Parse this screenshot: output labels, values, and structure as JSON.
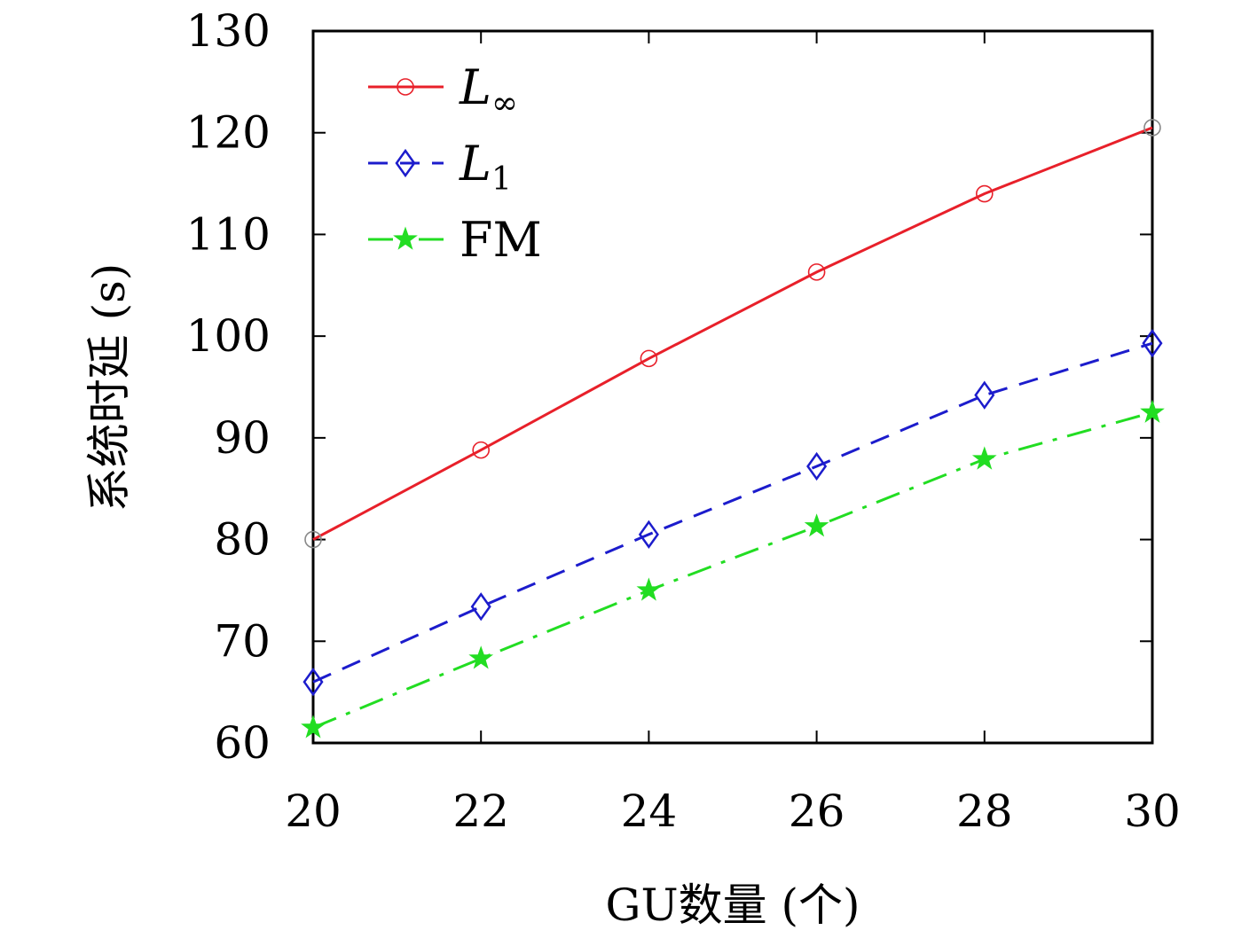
{
  "chart_data": {
    "type": "line",
    "x": [
      20,
      22,
      24,
      26,
      28,
      30
    ],
    "xlabel": "GU数量 (个)",
    "ylabel": "系统时延 (s)",
    "xlim": [
      20,
      30
    ],
    "ylim": [
      60,
      130
    ],
    "xticks": [
      "20",
      "22",
      "24",
      "26",
      "28",
      "30"
    ],
    "yticks": [
      "60",
      "70",
      "80",
      "90",
      "100",
      "110",
      "120",
      "130"
    ],
    "grid": false,
    "legend_position": "top-left",
    "series": [
      {
        "name": "L∞",
        "name_main": "L",
        "name_sub": "∞",
        "values": [
          80.0,
          88.8,
          97.8,
          106.3,
          114.0,
          120.5
        ],
        "color": "#e8202a",
        "marker": "circle",
        "line_style": "solid"
      },
      {
        "name": "L1",
        "name_main": "L",
        "name_sub": "1",
        "values": [
          66.0,
          73.4,
          80.5,
          87.2,
          94.2,
          99.3
        ],
        "color": "#1c1ccc",
        "marker": "diamond",
        "line_style": "dashed"
      },
      {
        "name": "FM",
        "name_main": "FM",
        "name_sub": "",
        "values": [
          61.5,
          68.3,
          75.0,
          81.3,
          87.9,
          92.5
        ],
        "color": "#22dd22",
        "marker": "star",
        "line_style": "dashdot"
      }
    ]
  }
}
